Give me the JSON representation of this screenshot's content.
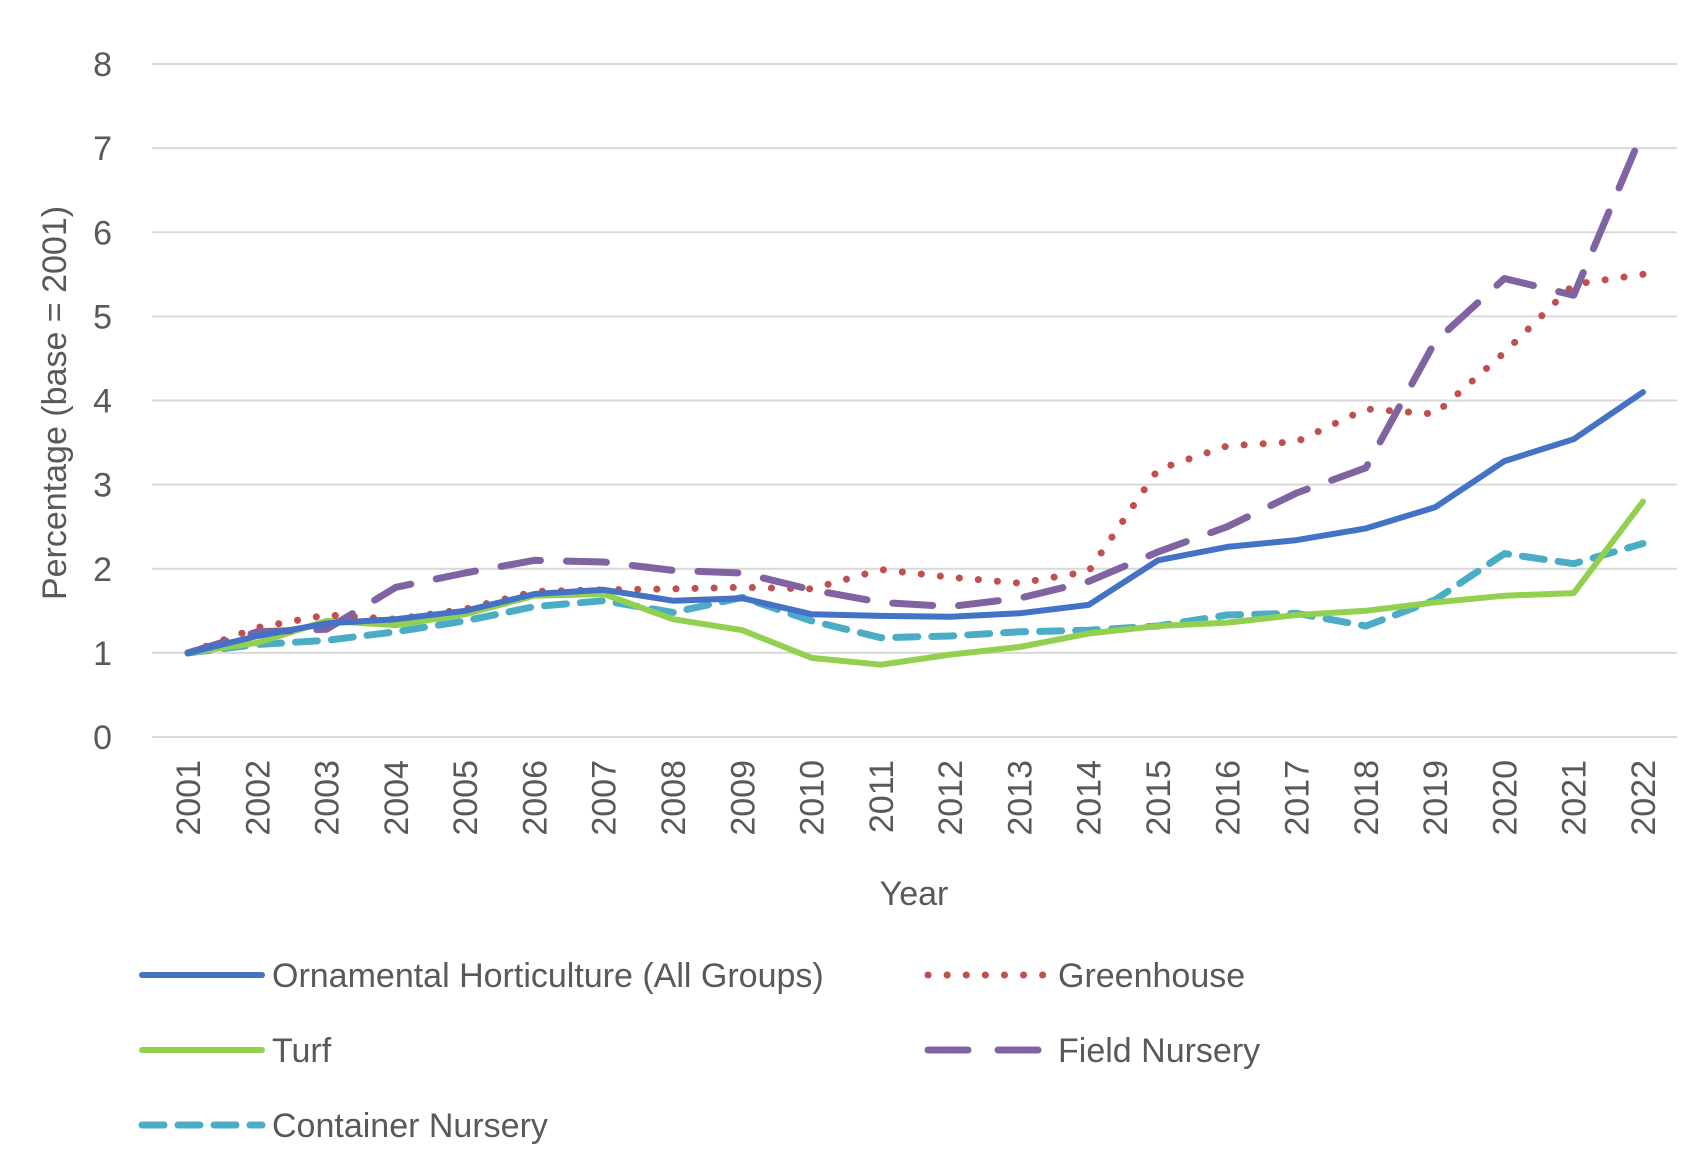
{
  "chart_data": {
    "type": "line",
    "title": "",
    "xlabel": "Year",
    "ylabel": "Percentage (base = 2001)",
    "ylim": [
      0,
      8
    ],
    "yticks": [
      0,
      1,
      2,
      3,
      4,
      5,
      6,
      7,
      8
    ],
    "grid": true,
    "legend_position": "bottom",
    "x": [
      "2001",
      "2002",
      "2003",
      "2004",
      "2005",
      "2006",
      "2007",
      "2008",
      "2009",
      "2010",
      "2011",
      "2012",
      "2013",
      "2014",
      "2015",
      "2016",
      "2017",
      "2018",
      "2019",
      "2020",
      "2021",
      "2022"
    ],
    "series": [
      {
        "name": "Ornamental Horticulture (All Groups)",
        "color": "#4472C4",
        "style": "solid",
        "values": [
          1.0,
          1.2,
          1.35,
          1.4,
          1.5,
          1.7,
          1.75,
          1.62,
          1.65,
          1.46,
          1.44,
          1.43,
          1.47,
          1.57,
          2.1,
          2.26,
          2.34,
          2.48,
          2.73,
          3.28,
          3.54,
          4.1
        ]
      },
      {
        "name": "Greenhouse",
        "color": "#C0504D",
        "style": "dotted",
        "values": [
          1.0,
          1.3,
          1.45,
          1.4,
          1.52,
          1.73,
          1.75,
          1.76,
          1.78,
          1.76,
          1.99,
          1.9,
          1.83,
          1.97,
          3.18,
          3.46,
          3.51,
          3.9,
          3.84,
          4.57,
          5.38,
          5.5
        ]
      },
      {
        "name": "Turf",
        "color": "#92D050",
        "style": "solid",
        "values": [
          1.0,
          1.12,
          1.38,
          1.33,
          1.46,
          1.68,
          1.7,
          1.4,
          1.27,
          0.94,
          0.86,
          0.98,
          1.07,
          1.23,
          1.32,
          1.36,
          1.45,
          1.5,
          1.6,
          1.68,
          1.71,
          2.8
        ]
      },
      {
        "name": "Field Nursery",
        "color": "#8064A2",
        "style": "dashed",
        "values": [
          1.0,
          1.25,
          1.28,
          1.78,
          1.95,
          2.1,
          2.08,
          1.98,
          1.95,
          1.75,
          1.6,
          1.55,
          1.65,
          1.85,
          2.2,
          2.5,
          2.9,
          3.2,
          4.7,
          5.45,
          5.25,
          7.2
        ]
      },
      {
        "name": "Container Nursery",
        "color": "#4BACC6",
        "style": "dashed",
        "values": [
          1.0,
          1.1,
          1.15,
          1.25,
          1.38,
          1.55,
          1.62,
          1.48,
          1.66,
          1.38,
          1.18,
          1.2,
          1.25,
          1.27,
          1.32,
          1.45,
          1.47,
          1.32,
          1.63,
          2.18,
          2.06,
          2.3
        ]
      }
    ]
  }
}
